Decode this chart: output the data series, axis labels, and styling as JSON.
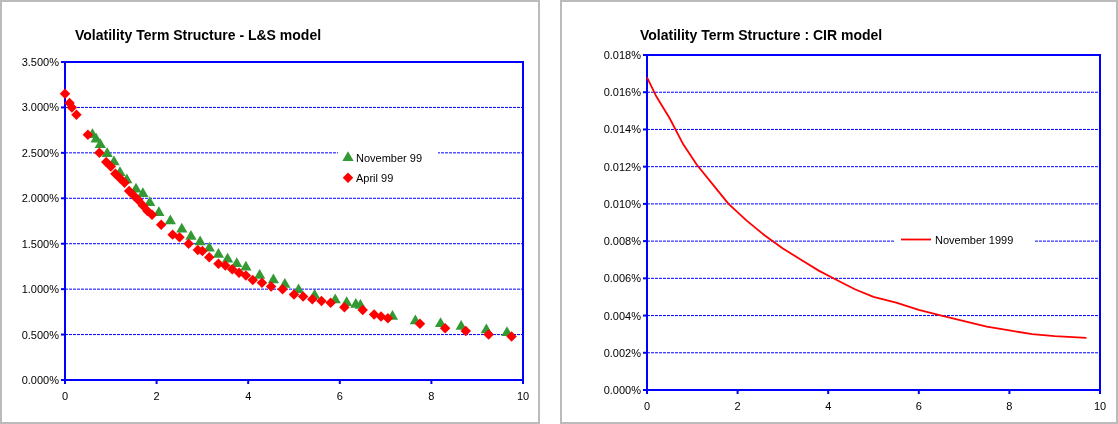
{
  "chart_data": [
    {
      "type": "scatter",
      "title": "Volatility Term Structure - L&S model",
      "xlim": [
        0,
        10
      ],
      "xticks": [
        0,
        2,
        4,
        6,
        8,
        10
      ],
      "ylim": [
        0,
        3.5
      ],
      "yticks": [
        {
          "value": 0,
          "label": "0.000%"
        },
        {
          "value": 0.5,
          "label": "0.500%"
        },
        {
          "value": 1,
          "label": "1.000%"
        },
        {
          "value": 1.5,
          "label": "1.500%"
        },
        {
          "value": 2,
          "label": "2.000%"
        },
        {
          "value": 2.5,
          "label": "2.500%"
        },
        {
          "value": 3,
          "label": "3.000%"
        },
        {
          "value": 3.5,
          "label": "3.500%"
        }
      ],
      "grid": "y",
      "legend": "right",
      "series": [
        {
          "name": "November 99",
          "color": "#339933",
          "marker": "triangle",
          "x": [
            0.6,
            0.68,
            0.77,
            0.92,
            1.07,
            1.2,
            1.35,
            1.55,
            1.7,
            1.85,
            2.05,
            2.3,
            2.55,
            2.75,
            2.95,
            3.15,
            3.35,
            3.55,
            3.75,
            3.95,
            4.25,
            4.55,
            4.8,
            5.1,
            5.45,
            5.9,
            6.15,
            6.35,
            6.45,
            7.15,
            7.65,
            8.2,
            8.65,
            9.2,
            9.65
          ],
          "values": [
            2.7,
            2.65,
            2.59,
            2.49,
            2.4,
            2.28,
            2.2,
            2.1,
            2.05,
            1.95,
            1.84,
            1.75,
            1.66,
            1.58,
            1.52,
            1.45,
            1.38,
            1.33,
            1.28,
            1.24,
            1.15,
            1.1,
            1.05,
            0.99,
            0.93,
            0.88,
            0.85,
            0.83,
            0.82,
            0.7,
            0.65,
            0.62,
            0.59,
            0.55,
            0.52
          ]
        },
        {
          "name": "April 99",
          "color": "#ff0000",
          "marker": "diamond",
          "x": [
            0,
            0.1,
            0.15,
            0.25,
            0.5,
            0.75,
            0.9,
            1.0,
            1.1,
            1.2,
            1.3,
            1.4,
            1.5,
            1.6,
            1.7,
            1.8,
            1.9,
            2.1,
            2.35,
            2.5,
            2.7,
            2.9,
            3.0,
            3.15,
            3.35,
            3.5,
            3.65,
            3.8,
            3.95,
            4.1,
            4.3,
            4.5,
            4.75,
            5.0,
            5.2,
            5.4,
            5.6,
            5.8,
            6.1,
            6.5,
            6.75,
            6.9,
            7.05,
            7.75,
            8.3,
            8.75,
            9.25,
            9.75
          ],
          "values": [
            3.15,
            3.05,
            3.0,
            2.92,
            2.7,
            2.5,
            2.4,
            2.35,
            2.27,
            2.22,
            2.17,
            2.08,
            2.03,
            1.98,
            1.92,
            1.86,
            1.82,
            1.71,
            1.6,
            1.57,
            1.5,
            1.43,
            1.42,
            1.35,
            1.28,
            1.26,
            1.22,
            1.18,
            1.15,
            1.1,
            1.07,
            1.03,
            1.0,
            0.94,
            0.92,
            0.89,
            0.87,
            0.85,
            0.8,
            0.77,
            0.72,
            0.7,
            0.68,
            0.62,
            0.57,
            0.54,
            0.5,
            0.48
          ]
        }
      ]
    },
    {
      "type": "line",
      "title": "Volatility Term Structure : CIR model",
      "xlim": [
        0,
        10
      ],
      "xticks": [
        0,
        2,
        4,
        6,
        8,
        10
      ],
      "ylim": [
        0,
        0.018
      ],
      "yticks": [
        {
          "value": 0,
          "label": "0.000%"
        },
        {
          "value": 0.002,
          "label": "0.002%"
        },
        {
          "value": 0.004,
          "label": "0.004%"
        },
        {
          "value": 0.006,
          "label": "0.006%"
        },
        {
          "value": 0.008,
          "label": "0.008%"
        },
        {
          "value": 0.01,
          "label": "0.010%"
        },
        {
          "value": 0.012,
          "label": "0.012%"
        },
        {
          "value": 0.014,
          "label": "0.014%"
        },
        {
          "value": 0.016,
          "label": "0.016%"
        },
        {
          "value": 0.018,
          "label": "0.018%"
        }
      ],
      "grid": "y",
      "legend": "right",
      "series": [
        {
          "name": "November 1999",
          "color": "#ff0000",
          "x": [
            0,
            0.2,
            0.5,
            0.8,
            1.1,
            1.5,
            1.8,
            2.2,
            2.6,
            3,
            3.4,
            3.8,
            4.2,
            4.6,
            5,
            5.5,
            6,
            6.5,
            7,
            7.5,
            8,
            8.5,
            9,
            9.7
          ],
          "values": [
            0.0168,
            0.0158,
            0.0146,
            0.0132,
            0.0121,
            0.0109,
            0.01,
            0.0091,
            0.0083,
            0.0076,
            0.007,
            0.0064,
            0.0059,
            0.0054,
            0.005,
            0.0047,
            0.0043,
            0.004,
            0.0037,
            0.0034,
            0.0032,
            0.003,
            0.0029,
            0.0028
          ]
        }
      ]
    }
  ]
}
